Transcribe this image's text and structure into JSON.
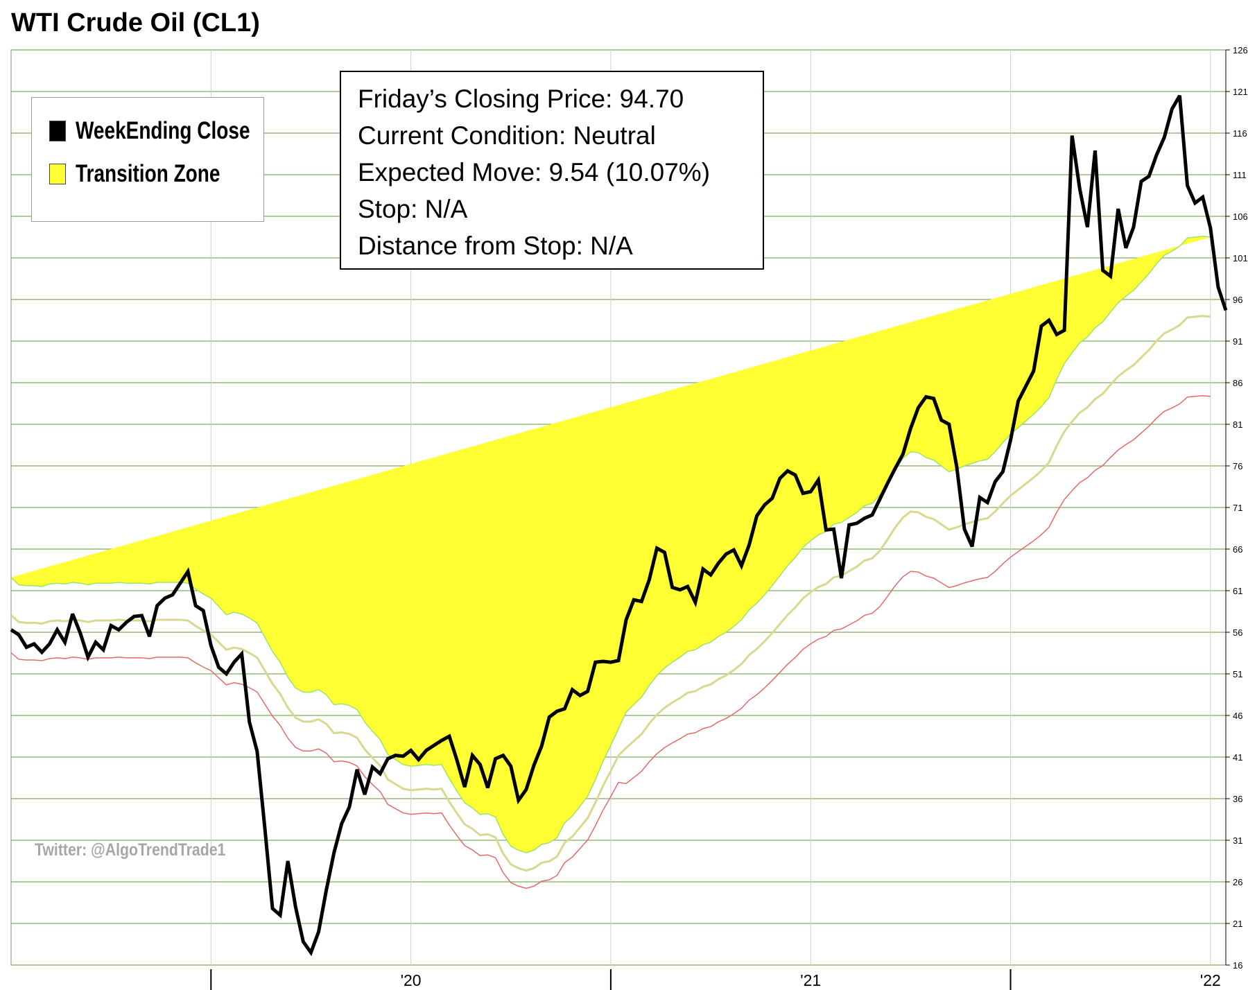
{
  "chart_data": {
    "type": "line",
    "title": "WTI Crude Oil (CL1)",
    "xlabel": "",
    "ylabel": "",
    "ylim": [
      16,
      126
    ],
    "y_ticks": [
      16,
      21,
      26,
      31,
      36,
      41,
      46,
      51,
      56,
      61,
      66,
      71,
      76,
      81,
      86,
      91,
      96,
      101,
      106,
      111,
      116,
      121,
      126
    ],
    "x_tick_labels": [
      "'20",
      "'21",
      "'22"
    ],
    "grid": true,
    "legend_position": "top-left",
    "colors": {
      "close": "#000000",
      "zone_fill": "#ffff33",
      "zone_upper_edge": "#9be36a",
      "zone_lower_edge": "#e86868",
      "zone_mid": "#d8d890",
      "grid": "#7aaf5a"
    },
    "series": [
      {
        "name": "WeekEnding Close",
        "values": [
          56.3,
          55.7,
          54.2,
          54.6,
          53.6,
          54.6,
          56.3,
          54.8,
          58.2,
          55.9,
          53.0,
          54.8,
          53.9,
          56.8,
          56.3,
          57.2,
          57.9,
          58.0,
          55.5,
          59.2,
          60.1,
          60.5,
          61.9,
          63.3,
          59.2,
          58.6,
          54.4,
          51.8,
          51.0,
          52.4,
          53.4,
          45.2,
          41.7,
          32.5,
          22.8,
          22.0,
          28.5,
          23.0,
          18.8,
          17.5,
          20.0,
          25.0,
          29.5,
          33.0,
          35.0,
          39.5,
          36.5,
          39.8,
          39.0,
          40.8,
          41.2,
          41.1,
          41.8,
          40.7,
          41.8,
          42.4,
          43.0,
          43.5,
          40.6,
          37.4,
          41.2,
          40.1,
          37.3,
          40.8,
          41.2,
          39.9,
          35.8,
          37.1,
          40.0,
          42.3,
          45.8,
          46.5,
          46.8,
          49.1,
          48.4,
          48.9,
          52.4,
          52.5,
          52.4,
          52.6,
          57.5,
          59.9,
          59.7,
          62.3,
          66.1,
          65.6,
          61.4,
          61.1,
          61.5,
          59.6,
          63.6,
          62.9,
          64.3,
          65.4,
          65.9,
          64.0,
          66.5,
          70.0,
          71.3,
          72.1,
          74.5,
          75.4,
          74.9,
          72.7,
          72.9,
          74.3,
          68.3,
          68.4,
          62.5,
          68.9,
          69.1,
          69.7,
          70.1,
          72.0,
          73.9,
          75.7,
          77.4,
          80.5,
          83.0,
          84.3,
          84.1,
          81.5,
          81.0,
          75.9,
          68.4,
          66.3,
          72.2,
          71.6,
          74.1,
          75.3,
          79.1,
          83.8,
          85.6,
          87.4,
          92.8,
          93.5,
          91.8,
          92.3,
          115.7,
          109.3,
          104.7,
          113.9,
          99.5,
          98.8,
          106.9,
          102.2,
          104.7,
          110.2,
          110.8,
          113.4,
          115.5,
          118.9,
          120.5,
          109.7,
          107.6,
          108.3,
          104.6,
          97.5,
          94.7
        ]
      },
      {
        "name": "Transition Zone",
        "upper": [
          62.6,
          61.7,
          61.6,
          61.6,
          61.5,
          61.8,
          61.9,
          61.8,
          62.0,
          61.9,
          61.7,
          61.9,
          61.9,
          61.9,
          62.0,
          61.9,
          61.9,
          61.9,
          61.8,
          62.0,
          62.0,
          62.0,
          62.0,
          61.9,
          61.2,
          60.6,
          60.1,
          59.1,
          58.1,
          58.4,
          58.2,
          57.7,
          57.1,
          55.4,
          53.7,
          52.4,
          50.6,
          49.3,
          48.8,
          48.8,
          49.1,
          48.5,
          47.3,
          47.4,
          47.2,
          46.7,
          45.2,
          44.1,
          43.1,
          41.3,
          40.7,
          40.1,
          39.9,
          40.0,
          40.1,
          40.0,
          40.1,
          38.4,
          36.9,
          35.5,
          34.9,
          34.1,
          34.2,
          33.8,
          31.7,
          30.3,
          29.8,
          29.5,
          29.8,
          30.5,
          30.7,
          31.3,
          33.1,
          33.9,
          35.1,
          36.3,
          38.3,
          40.5,
          42.4,
          44.4,
          46.4,
          47.3,
          48.2,
          49.6,
          50.8,
          51.7,
          52.4,
          53.0,
          53.7,
          53.9,
          54.5,
          54.8,
          55.5,
          56.0,
          56.7,
          57.5,
          58.7,
          59.5,
          60.5,
          61.6,
          62.8,
          64.0,
          65.0,
          66.2,
          67.0,
          67.7,
          68.1,
          69.0,
          69.2,
          69.8,
          70.4,
          71.2,
          71.5,
          72.5,
          74.0,
          75.6,
          76.9,
          77.7,
          77.6,
          77.0,
          76.7,
          76.0,
          75.3,
          75.6,
          76.0,
          76.3,
          76.6,
          76.8,
          77.7,
          78.8,
          79.8,
          80.6,
          81.4,
          82.2,
          83.1,
          84.2,
          86.4,
          88.3,
          89.6,
          90.8,
          91.5,
          92.6,
          93.3,
          94.5,
          95.6,
          96.4,
          97.1,
          98.1,
          99.1,
          100.3,
          101.3,
          101.8,
          102.4,
          103.4,
          103.5,
          103.6,
          103.5
        ]
      }
    ]
  },
  "legend": {
    "items": [
      {
        "label": "WeekEnding Close",
        "color": "#000000"
      },
      {
        "label": "Transition Zone",
        "color": "#ffff33"
      }
    ]
  },
  "info_box": {
    "lines": [
      "Friday’s Closing Price: 94.70",
      "Current Condition: Neutral",
      "Expected Move: 9.54 (10.07%)",
      "Stop: N/A",
      "Distance from Stop: N/A"
    ]
  },
  "watermark": "Twitter: @AlgoTrendTrade1"
}
